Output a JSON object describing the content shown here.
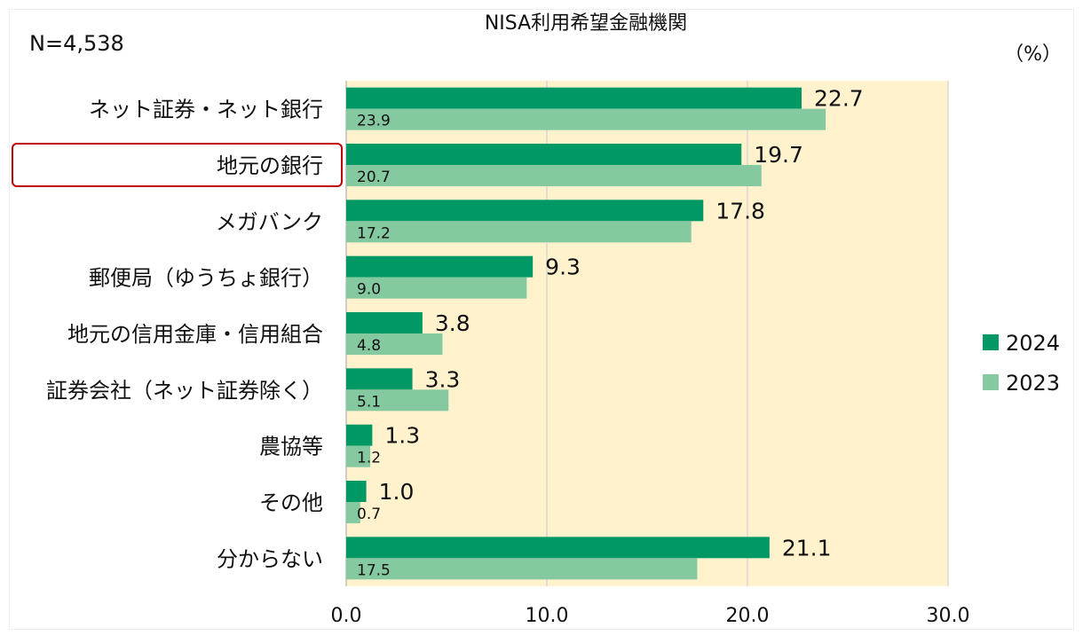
{
  "chart_data": {
    "type": "bar",
    "orientation": "horizontal",
    "title": "NISA利用希望金融機関",
    "sample_size": "N=4,538",
    "unit": "（%）",
    "categories": [
      "ネット証券・ネット銀行",
      "地元の銀行",
      "メガバンク",
      "郵便局（ゆうちょ銀行）",
      "地元の信用金庫・信用組合",
      "証券会社（ネット証券除く）",
      "農協等",
      "その他",
      "分からない"
    ],
    "highlighted_category": "地元の銀行",
    "series": [
      {
        "name": "2024",
        "color": "#009966",
        "values": [
          22.7,
          19.7,
          17.8,
          9.3,
          3.8,
          3.3,
          1.3,
          1.0,
          21.1
        ],
        "labels": [
          "22.7",
          "19.7",
          "17.8",
          "9.3",
          "3.8",
          "3.3",
          "1.3",
          "1.0",
          "21.1"
        ]
      },
      {
        "name": "2023",
        "color": "#85C9A0",
        "values": [
          23.9,
          20.7,
          17.2,
          9.0,
          4.8,
          5.1,
          1.2,
          0.7,
          17.5
        ],
        "labels": [
          "23.9",
          "20.7",
          "17.2",
          "9.0",
          "4.8",
          "5.1",
          "1.2",
          "0.7",
          "17.5"
        ]
      }
    ],
    "xlim": [
      0,
      30
    ],
    "xticks": [
      "0.0",
      "10.0",
      "20.0",
      "30.0"
    ],
    "xlabel": "",
    "ylabel": "",
    "grid": true,
    "legend_position": "right",
    "colors": {
      "plot_background": "#FFF2CC",
      "grid": "#D0D0D0",
      "highlight_border": "#C00000"
    }
  }
}
